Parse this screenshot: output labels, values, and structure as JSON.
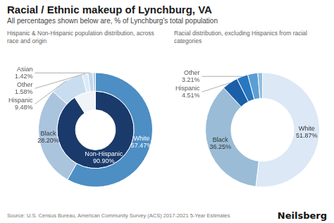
{
  "title": "Racial / Ethnic makeup of Lynchburg, VA",
  "subtitle": "All percentages shown below are, % of Lynchburg's total population",
  "annotations": [
    "Source: U.S. Census Bureau, American Community Survey (ACS) 2017-2021 5-Year Estimates",
    "Neilsberg"
  ],
  "chart_data": [
    {
      "type": "doughnut",
      "subtitle": "Hispanic & Non-Hispanic population distribution, across race and origin",
      "data_labels": true,
      "series": [
        {
          "categories": [
            "White",
            "Black",
            "Hispanic",
            "Other",
            "Asian",
            null
          ],
          "values": [
            57.47,
            28.2,
            9.48,
            1.58,
            1.42,
            0.68
          ],
          "colors": [
            "#4d8ec4",
            "#aac4de",
            "#c8ddf0",
            "#ddeaf7",
            "#c0d8ee",
            "#b0cce6"
          ],
          "value_labels": [
            "57.47%",
            "28.20%",
            "9.48%",
            "1.58%",
            "1.42%",
            null
          ]
        },
        {
          "categories": [
            "Non-Hispanic",
            null
          ],
          "values": [
            90.9,
            9.1
          ],
          "colors": [
            "#1a3a6b",
            "#f0f4f8"
          ],
          "value_labels": [
            "90.90%",
            null
          ]
        }
      ]
    },
    {
      "type": "doughnut",
      "subtitle": "Racial distribution, excluding Hispanics from racial categories",
      "data_labels": true,
      "categories": [
        "White",
        "Black",
        "Hispanic",
        "Other",
        null,
        null
      ],
      "values": [
        51.87,
        36.25,
        4.51,
        3.21,
        2.85,
        1.31
      ],
      "colors": [
        "#dce8f5",
        "#9abcd6",
        "#1a5fa8",
        "#2878c0",
        "#5a9fd4",
        "#90bedd"
      ],
      "value_labels": [
        "51.87%",
        "36.25%",
        "4.51%",
        "3.21%",
        null,
        null
      ]
    }
  ]
}
